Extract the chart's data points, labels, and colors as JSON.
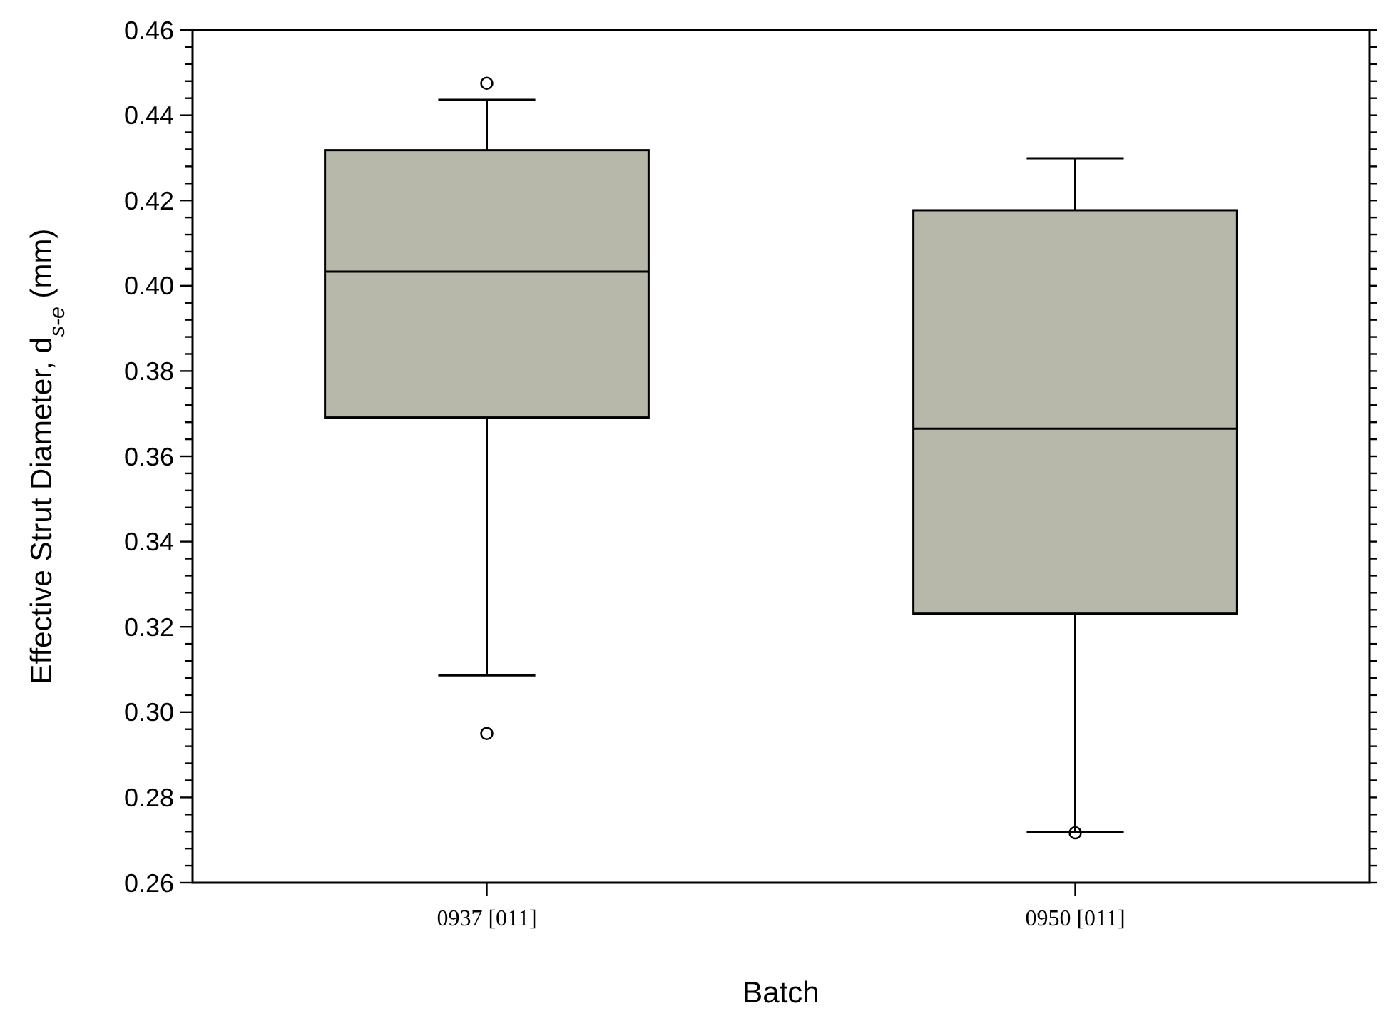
{
  "chart_data": {
    "type": "box",
    "xlabel": "Batch",
    "ylabel": "Effective Strut Diameter, d$_{s-e}$ (mm)",
    "categories": [
      "0937 [011]",
      "0950 [011]"
    ],
    "color": "#b7b7aa",
    "boxes": [
      {
        "low": 0.3086,
        "q1": 0.3691,
        "median": 0.4033,
        "q3": 0.4318,
        "high": 0.4436,
        "outliers": [
          0.4475,
          0.295
        ]
      },
      {
        "low": 0.2719,
        "q1": 0.3231,
        "median": 0.3665,
        "q3": 0.4177,
        "high": 0.4299,
        "outliers": [
          0.2717
        ]
      }
    ],
    "ylim": [
      0.26,
      0.46
    ],
    "yticks": [
      {
        "value": 0.26,
        "label": "0.26"
      },
      {
        "value": 0.264,
        "label": null
      },
      {
        "value": 0.268,
        "label": null
      },
      {
        "value": 0.272,
        "label": null
      },
      {
        "value": 0.276,
        "label": null
      },
      {
        "value": 0.28,
        "label": "0.28"
      },
      {
        "value": 0.284,
        "label": null
      },
      {
        "value": 0.288,
        "label": null
      },
      {
        "value": 0.292,
        "label": null
      },
      {
        "value": 0.296,
        "label": null
      },
      {
        "value": 0.3,
        "label": "0.30"
      },
      {
        "value": 0.304,
        "label": null
      },
      {
        "value": 0.308,
        "label": null
      },
      {
        "value": 0.312,
        "label": null
      },
      {
        "value": 0.316,
        "label": null
      },
      {
        "value": 0.32,
        "label": "0.32"
      },
      {
        "value": 0.324,
        "label": null
      },
      {
        "value": 0.328,
        "label": null
      },
      {
        "value": 0.332,
        "label": null
      },
      {
        "value": 0.336,
        "label": null
      },
      {
        "value": 0.34,
        "label": "0.34"
      },
      {
        "value": 0.344,
        "label": null
      },
      {
        "value": 0.348,
        "label": null
      },
      {
        "value": 0.352,
        "label": null
      },
      {
        "value": 0.356,
        "label": null
      },
      {
        "value": 0.36,
        "label": "0.36"
      },
      {
        "value": 0.364,
        "label": null
      },
      {
        "value": 0.368,
        "label": null
      },
      {
        "value": 0.372,
        "label": null
      },
      {
        "value": 0.376,
        "label": null
      },
      {
        "value": 0.38,
        "label": "0.38"
      },
      {
        "value": 0.384,
        "label": null
      },
      {
        "value": 0.388,
        "label": null
      },
      {
        "value": 0.392,
        "label": null
      },
      {
        "value": 0.396,
        "label": null
      },
      {
        "value": 0.4,
        "label": "0.40"
      },
      {
        "value": 0.404,
        "label": null
      },
      {
        "value": 0.408,
        "label": null
      },
      {
        "value": 0.412,
        "label": null
      },
      {
        "value": 0.416,
        "label": null
      },
      {
        "value": 0.42,
        "label": "0.42"
      },
      {
        "value": 0.424,
        "label": null
      },
      {
        "value": 0.428,
        "label": null
      },
      {
        "value": 0.432,
        "label": null
      },
      {
        "value": 0.436,
        "label": null
      },
      {
        "value": 0.44,
        "label": "0.44"
      },
      {
        "value": 0.444,
        "label": null
      },
      {
        "value": 0.448,
        "label": null
      },
      {
        "value": 0.452,
        "label": null
      },
      {
        "value": 0.456,
        "label": null
      },
      {
        "value": 0.46,
        "label": "0.46"
      }
    ],
    "grid": false
  }
}
